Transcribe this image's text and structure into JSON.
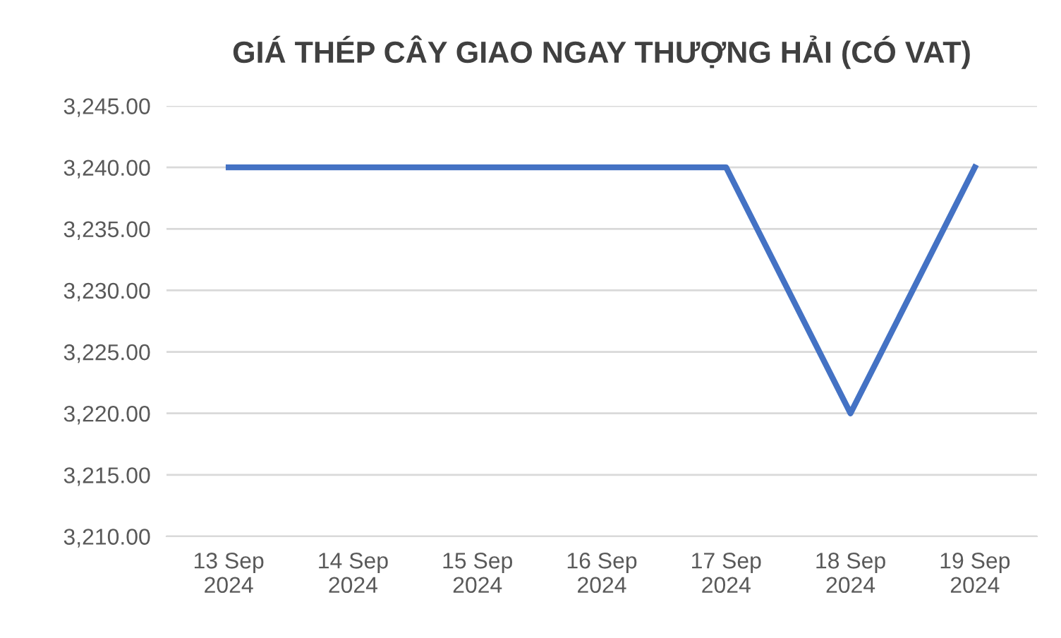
{
  "chart_data": {
    "type": "line",
    "title": "GIÁ THÉP CÂY GIAO NGAY THƯỢNG HẢI (CÓ VAT)",
    "categories": [
      "13 Sep\n2024",
      "14 Sep\n2024",
      "15 Sep\n2024",
      "16 Sep\n2024",
      "17 Sep\n2024",
      "18 Sep\n2024",
      "19 Sep\n2024"
    ],
    "series": [
      {
        "color": "#4472c4",
        "values": [
          3240,
          3240,
          3240,
          3240,
          3240,
          3220,
          3240
        ]
      }
    ],
    "ylim": [
      3210,
      3245
    ],
    "yticks": [
      {
        "value": 3210,
        "label": "3,210.00"
      },
      {
        "value": 3215,
        "label": "3,215.00"
      },
      {
        "value": 3220,
        "label": "3,220.00"
      },
      {
        "value": 3225,
        "label": "3,225.00"
      },
      {
        "value": 3230,
        "label": "3,230.00"
      },
      {
        "value": 3235,
        "label": "3,235.00"
      },
      {
        "value": 3240,
        "label": "3,240.00"
      },
      {
        "value": 3245,
        "label": "3,245.00"
      }
    ],
    "grid": "y",
    "marker": "none",
    "line_style": "solid"
  }
}
